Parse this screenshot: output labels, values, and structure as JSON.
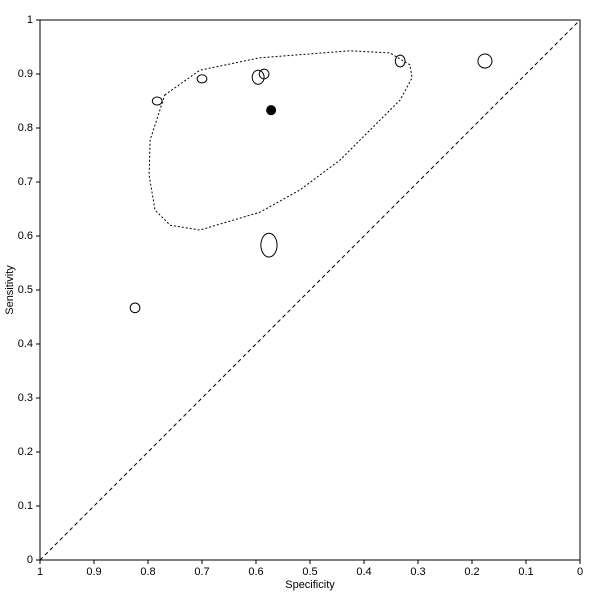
{
  "chart_data": {
    "type": "scatter",
    "xlabel": "Specificity",
    "ylabel": "Sensitivity",
    "xlim": [
      1,
      0
    ],
    "ylim": [
      0,
      1
    ],
    "xticks": [
      1,
      0.9,
      0.8,
      0.7,
      0.6,
      0.5,
      0.4,
      0.3,
      0.2,
      0.1,
      0
    ],
    "yticks": [
      0,
      0.1,
      0.2,
      0.3,
      0.4,
      0.5,
      0.6,
      0.7,
      0.8,
      0.9,
      1
    ],
    "x": [
      0.783,
      0.7,
      0.596,
      0.585,
      0.333,
      0.176,
      0.576,
      0.824
    ],
    "values": [
      0.85,
      0.891,
      0.894,
      0.9,
      0.924,
      0.924,
      0.583,
      0.467
    ],
    "widths": [
      0.009,
      0.009,
      0.011,
      0.009,
      0.009,
      0.013,
      0.015,
      0.009
    ],
    "heights": [
      0.0075,
      0.0075,
      0.013,
      0.009,
      0.011,
      0.013,
      0.022,
      0.009
    ],
    "summary": {
      "x": 0.572,
      "y": 0.833
    },
    "region": {
      "x": [
        0.769,
        0.704,
        0.593,
        0.426,
        0.352,
        0.315,
        0.311,
        0.333,
        0.389,
        0.444,
        0.519,
        0.593,
        0.704,
        0.759,
        0.787,
        0.798,
        0.796,
        0.781,
        0.769
      ],
      "y": [
        0.861,
        0.907,
        0.93,
        0.943,
        0.939,
        0.917,
        0.893,
        0.852,
        0.796,
        0.741,
        0.685,
        0.644,
        0.611,
        0.62,
        0.648,
        0.713,
        0.778,
        0.824,
        0.861
      ]
    }
  }
}
